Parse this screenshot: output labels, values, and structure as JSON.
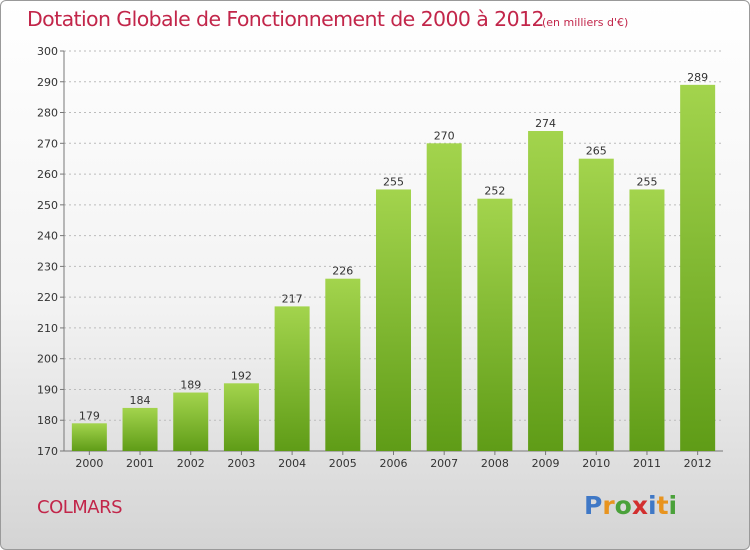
{
  "chart_data": {
    "type": "bar",
    "title": "Dotation Globale de Fonctionnement de 2000 à 2012",
    "unit": "(en milliers d'€)",
    "categories": [
      "2000",
      "2001",
      "2002",
      "2003",
      "2004",
      "2005",
      "2006",
      "2007",
      "2008",
      "2009",
      "2010",
      "2011",
      "2012"
    ],
    "values": [
      179,
      184,
      189,
      192,
      217,
      226,
      255,
      270,
      252,
      274,
      265,
      255,
      289
    ],
    "ylim": [
      170,
      300
    ],
    "yticks": [
      170,
      180,
      190,
      200,
      210,
      220,
      230,
      240,
      250,
      260,
      270,
      280,
      290,
      300
    ],
    "grid": "horizontal-dotted",
    "colors": {
      "bar_light": "#a3d44d",
      "bar_dark": "#5f9c17",
      "title": "#c2264a"
    }
  },
  "footer": {
    "commune": "COLMARS",
    "logo_letters": [
      "P",
      "r",
      "o",
      "x",
      "i",
      "t",
      "i"
    ],
    "logo_colors": [
      "#3f78c6",
      "#e8941f",
      "#4aa13a",
      "#d22f2f",
      "#3f78c6",
      "#e8941f",
      "#4aa13a"
    ]
  }
}
